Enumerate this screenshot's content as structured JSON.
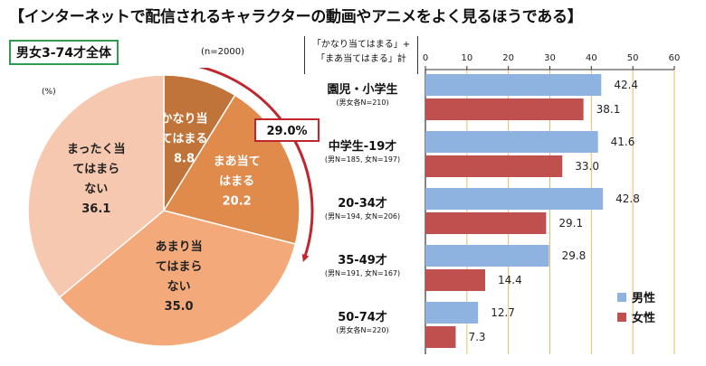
{
  "title": "【インターネットで配信されるキャラクターの動画やアニメをよく見るほうである】",
  "pie_panel": {
    "badge": "男女3-74才全体",
    "sample_note": "(n=2000)",
    "unit": "(%)",
    "callout": "29.0%",
    "colors": [
      "#c0743a",
      "#e08a4c",
      "#f4a97a",
      "#f7c8b0"
    ]
  },
  "bar_panel": {
    "note_lines": [
      "「かなり当てはまる」+",
      "「まあ当てはまる」計"
    ],
    "colors": {
      "male": "#8fb3e0",
      "female": "#c0504d",
      "grid": "#e8b86a"
    }
  },
  "chart_data": [
    {
      "type": "pie",
      "title": "男女3-74才全体",
      "unit": "%",
      "slices": [
        {
          "label_lines": [
            "かなり当",
            "てはまる"
          ],
          "value": 8.8
        },
        {
          "label_lines": [
            "まあ当て",
            "はまる"
          ],
          "value": 20.2
        },
        {
          "label_lines": [
            "あまり当",
            "てはまら",
            "ない"
          ],
          "value": 35.0
        },
        {
          "label_lines": [
            "まったく当",
            "てはまら",
            "ない"
          ],
          "value": 36.1
        }
      ]
    },
    {
      "type": "bar",
      "orientation": "horizontal",
      "xlim": [
        0,
        60
      ],
      "ticks": [
        0,
        10,
        20,
        30,
        40,
        50,
        60
      ],
      "categories": [
        {
          "name": "園児・小学生",
          "sub": "(男女各N=210)"
        },
        {
          "name": "中学生-19才",
          "sub": "(男N=185, 女N=197)"
        },
        {
          "name": "20-34才",
          "sub": "(男N=194, 女N=206)"
        },
        {
          "name": "35-49才",
          "sub": "(男N=191, 女N=167)"
        },
        {
          "name": "50-74才",
          "sub": "(男女各N=220)"
        }
      ],
      "series": [
        {
          "name": "男性",
          "values": [
            42.4,
            41.6,
            42.8,
            29.8,
            12.7
          ]
        },
        {
          "name": "女性",
          "values": [
            38.1,
            33.0,
            29.1,
            14.4,
            7.3
          ]
        }
      ],
      "legend": "bottom-right"
    }
  ]
}
